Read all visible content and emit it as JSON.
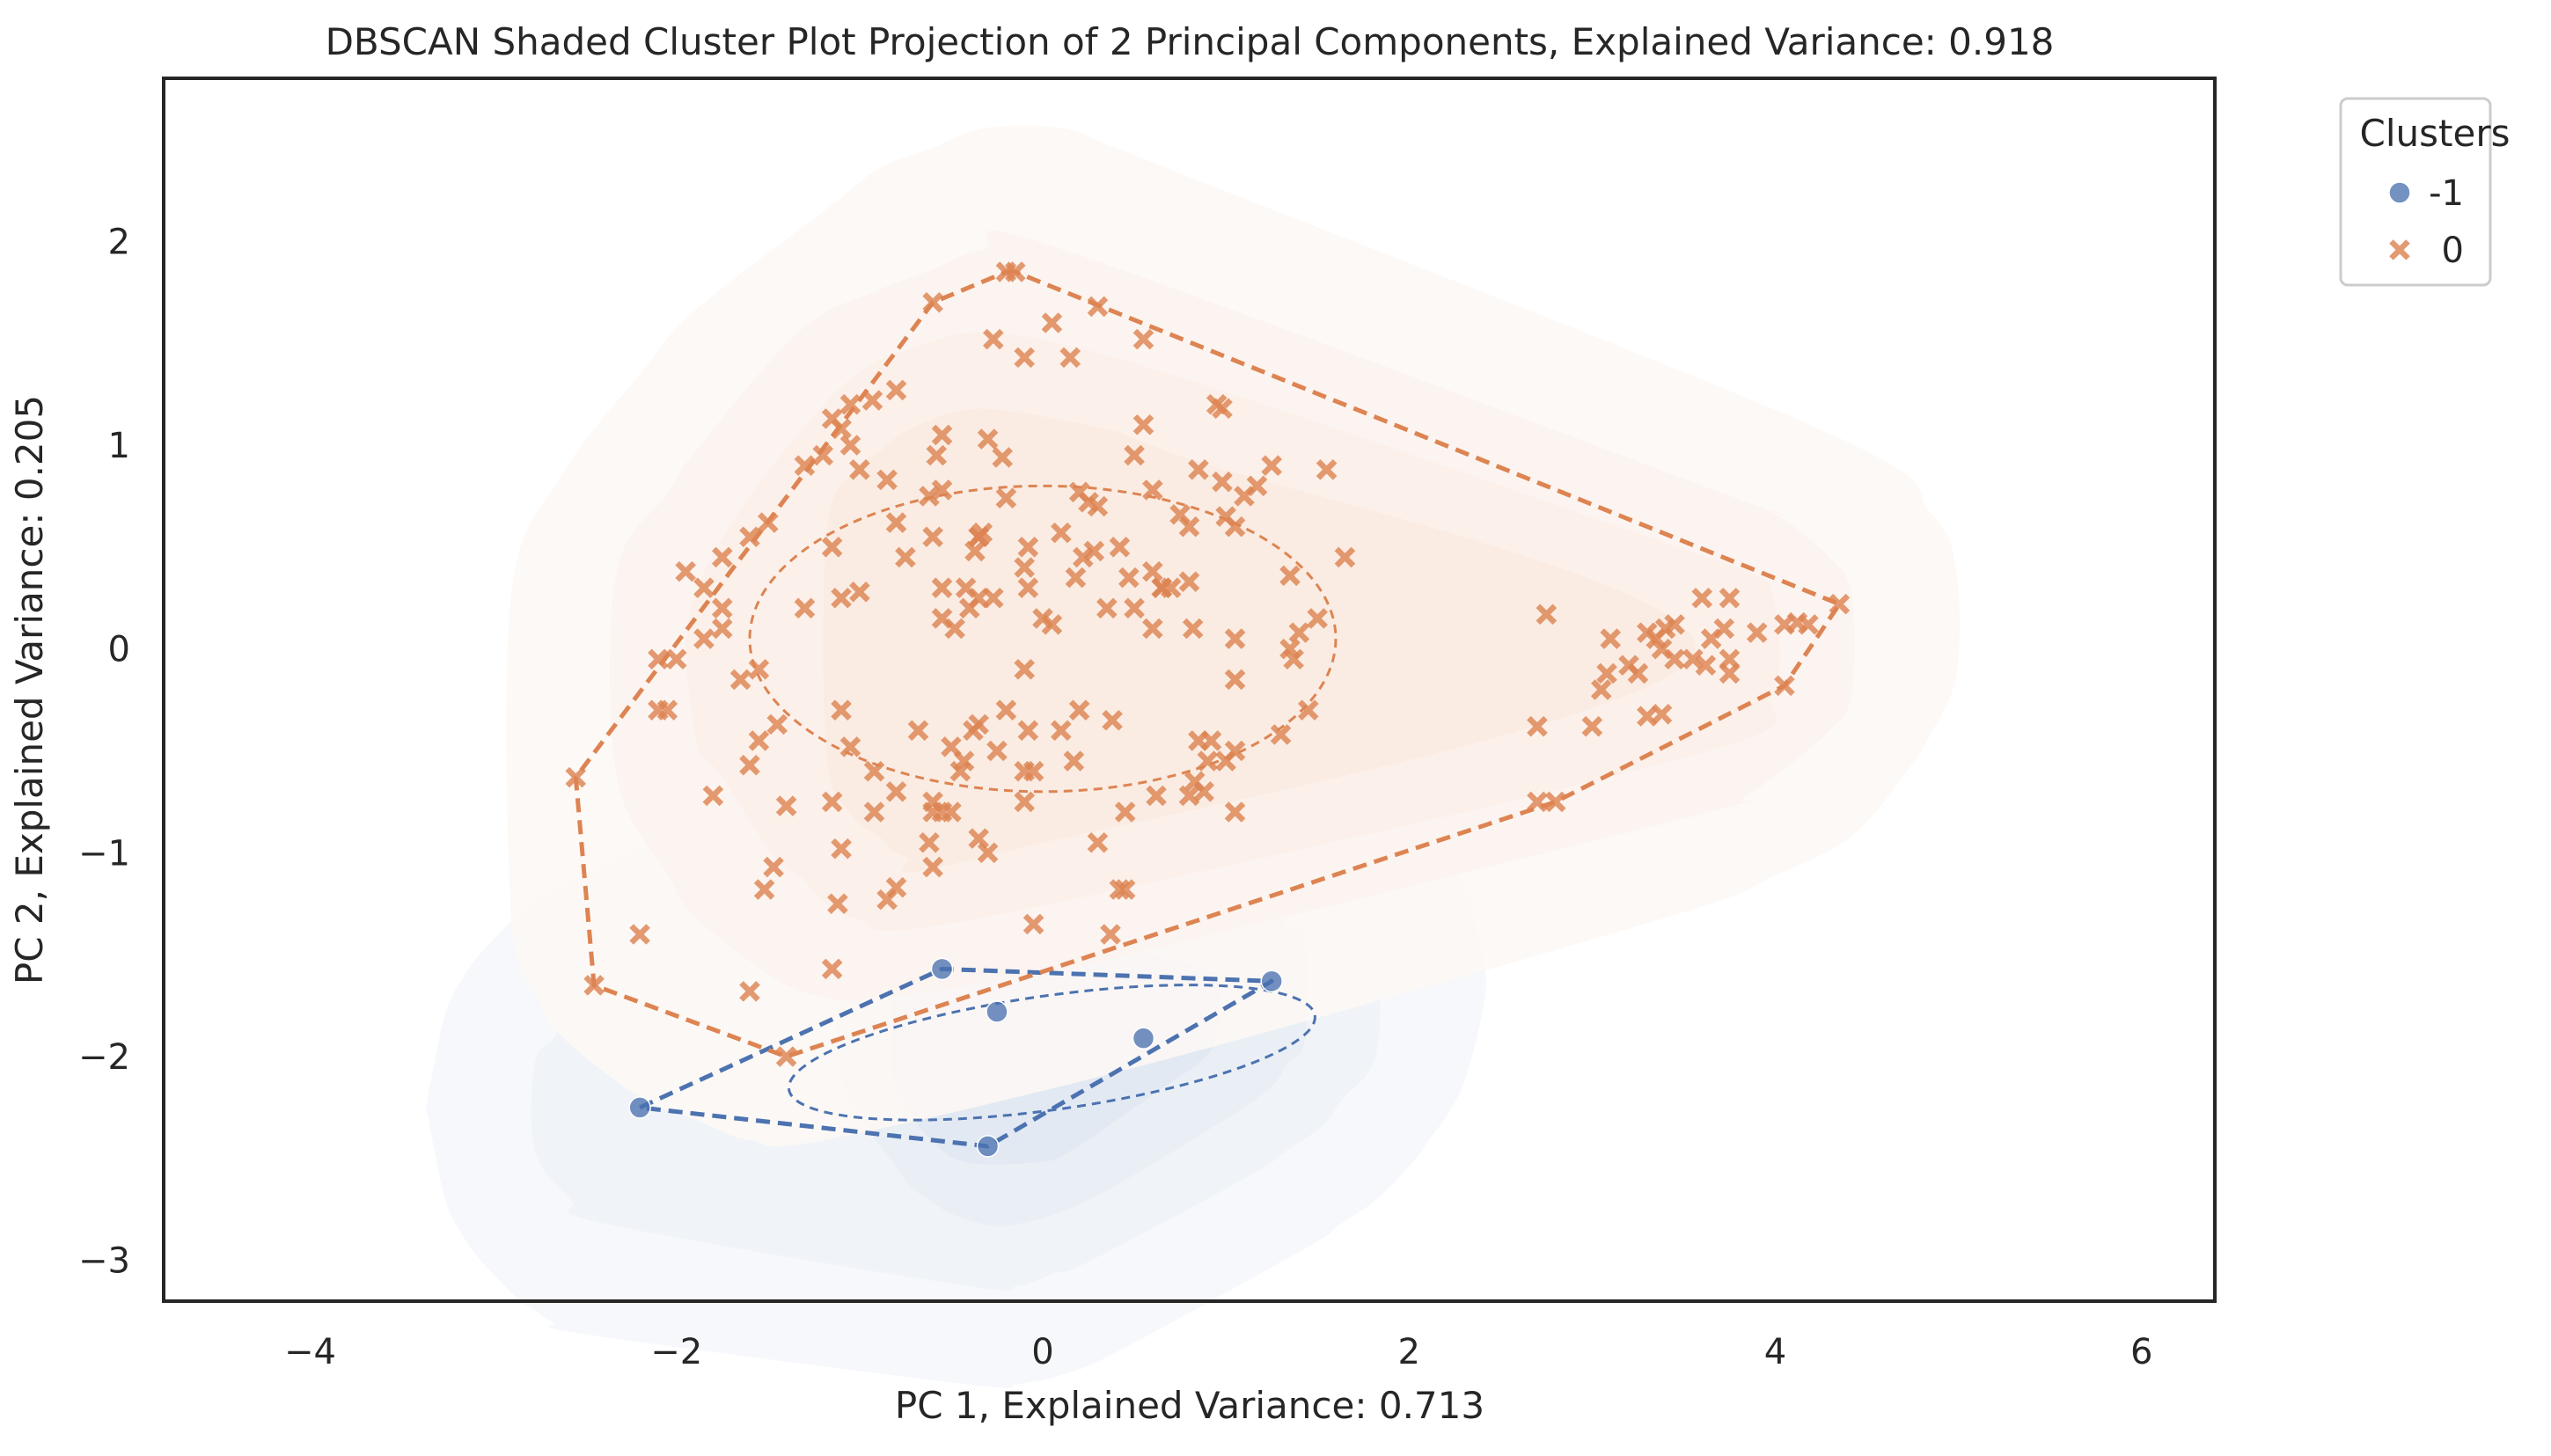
{
  "chart_data": {
    "type": "scatter",
    "title": "DBSCAN Shaded Cluster Plot Projection of 2 Principal Components, Explained Variance: 0.918",
    "xlabel": "PC 1, Explained Variance: 0.713",
    "ylabel": "PC 2, Explained Variance: 0.205",
    "xlim": [
      -4.8,
      6.4
    ],
    "ylim": [
      -3.2,
      2.8
    ],
    "xticks": [
      -4,
      -2,
      0,
      2,
      4,
      6
    ],
    "xtick_labels": [
      "−4",
      "−2",
      "0",
      "2",
      "4",
      "6"
    ],
    "yticks": [
      -3,
      -2,
      -1,
      0,
      1,
      2
    ],
    "ytick_labels": [
      "−3",
      "−2",
      "−1",
      "0",
      "1",
      "2"
    ],
    "grid": false,
    "legend": {
      "title": "Clusters",
      "placement": "outside-top-right",
      "entries": [
        {
          "label": "-1",
          "marker": "circle",
          "color": "#4c72b0"
        },
        {
          "label": "0",
          "marker": "x",
          "color": "#dd8452"
        }
      ]
    },
    "series": [
      {
        "name": "-1",
        "marker": "circle",
        "color": "#4c72b0",
        "points": [
          [
            -0.55,
            -1.57
          ],
          [
            -0.25,
            -1.78
          ],
          [
            0.55,
            -1.91
          ],
          [
            1.25,
            -1.63
          ],
          [
            -2.2,
            -2.25
          ],
          [
            -0.3,
            -2.44
          ]
        ],
        "hull": [
          [
            -2.2,
            -2.25
          ],
          [
            -0.55,
            -1.57
          ],
          [
            1.25,
            -1.63
          ],
          [
            -0.3,
            -2.44
          ]
        ],
        "ellipse": {
          "cx": 0.05,
          "cy": -1.98,
          "rx": 1.45,
          "ry": 0.28,
          "angle_deg": 8
        }
      },
      {
        "name": "0",
        "marker": "x",
        "color": "#dd8452",
        "points": [
          [
            -0.2,
            1.85
          ],
          [
            -0.15,
            1.85
          ],
          [
            -0.6,
            1.7
          ],
          [
            0.3,
            1.68
          ],
          [
            0.05,
            1.6
          ],
          [
            -0.27,
            1.52
          ],
          [
            0.55,
            1.52
          ],
          [
            -0.1,
            1.43
          ],
          [
            0.15,
            1.43
          ],
          [
            -0.8,
            1.27
          ],
          [
            -0.93,
            1.22
          ],
          [
            -1.05,
            1.2
          ],
          [
            0.95,
            1.2
          ],
          [
            0.98,
            1.18
          ],
          [
            -1.15,
            1.13
          ],
          [
            -1.1,
            1.08
          ],
          [
            0.55,
            1.1
          ],
          [
            -0.55,
            1.05
          ],
          [
            -0.3,
            1.03
          ],
          [
            -1.05,
            1.0
          ],
          [
            -1.2,
            0.95
          ],
          [
            0.5,
            0.95
          ],
          [
            -0.58,
            0.95
          ],
          [
            -0.22,
            0.94
          ],
          [
            -1.3,
            0.9
          ],
          [
            -1.0,
            0.88
          ],
          [
            0.85,
            0.88
          ],
          [
            1.25,
            0.9
          ],
          [
            1.55,
            0.88
          ],
          [
            0.98,
            0.82
          ],
          [
            1.17,
            0.8
          ],
          [
            -0.85,
            0.83
          ],
          [
            -0.62,
            0.75
          ],
          [
            -0.55,
            0.78
          ],
          [
            -0.2,
            0.74
          ],
          [
            0.2,
            0.77
          ],
          [
            0.25,
            0.72
          ],
          [
            0.6,
            0.78
          ],
          [
            1.1,
            0.75
          ],
          [
            1.0,
            0.65
          ],
          [
            -0.8,
            0.62
          ],
          [
            -1.5,
            0.62
          ],
          [
            0.3,
            0.7
          ],
          [
            -1.6,
            0.55
          ],
          [
            -0.6,
            0.55
          ],
          [
            -0.33,
            0.57
          ],
          [
            0.1,
            0.57
          ],
          [
            1.05,
            0.6
          ],
          [
            -0.35,
            0.55
          ],
          [
            -0.35,
            0.55
          ],
          [
            0.75,
            0.66
          ],
          [
            -1.15,
            0.5
          ],
          [
            0.8,
            0.6
          ],
          [
            -1.75,
            0.45
          ],
          [
            1.65,
            0.45
          ],
          [
            -0.08,
            0.5
          ],
          [
            0.42,
            0.5
          ],
          [
            -0.37,
            0.48
          ],
          [
            0.28,
            0.48
          ],
          [
            0.22,
            0.45
          ],
          [
            -0.75,
            0.45
          ],
          [
            0.6,
            0.38
          ],
          [
            -1.95,
            0.38
          ],
          [
            -1.85,
            0.3
          ],
          [
            0.47,
            0.35
          ],
          [
            -0.1,
            0.4
          ],
          [
            -0.42,
            0.3
          ],
          [
            -1.0,
            0.28
          ],
          [
            1.35,
            0.36
          ],
          [
            0.65,
            0.3
          ],
          [
            0.65,
            0.3
          ],
          [
            0.18,
            0.35
          ],
          [
            -0.55,
            0.3
          ],
          [
            0.8,
            0.33
          ],
          [
            -0.08,
            0.3
          ],
          [
            0.7,
            0.3
          ],
          [
            -1.1,
            0.25
          ],
          [
            -1.3,
            0.2
          ],
          [
            -0.27,
            0.25
          ],
          [
            -0.35,
            0.25
          ],
          [
            -0.4,
            0.2
          ],
          [
            0.35,
            0.2
          ],
          [
            0.5,
            0.2
          ],
          [
            -1.75,
            0.2
          ],
          [
            1.5,
            0.15
          ],
          [
            -0.55,
            0.15
          ],
          [
            -0.48,
            0.1
          ],
          [
            0.0,
            0.15
          ],
          [
            0.05,
            0.12
          ],
          [
            -1.75,
            0.1
          ],
          [
            -1.85,
            0.05
          ],
          [
            0.6,
            0.1
          ],
          [
            0.82,
            0.1
          ],
          [
            1.05,
            0.05
          ],
          [
            1.4,
            0.08
          ],
          [
            1.35,
            0.0
          ],
          [
            1.37,
            -0.05
          ],
          [
            -2.1,
            -0.05
          ],
          [
            -2.0,
            -0.05
          ],
          [
            -0.1,
            -0.1
          ],
          [
            -1.55,
            -0.1
          ],
          [
            1.05,
            -0.15
          ],
          [
            -1.65,
            -0.15
          ],
          [
            -2.05,
            -0.3
          ],
          [
            -2.1,
            -0.3
          ],
          [
            -1.1,
            -0.3
          ],
          [
            -0.2,
            -0.3
          ],
          [
            0.2,
            -0.3
          ],
          [
            -0.35,
            -0.37
          ],
          [
            0.38,
            -0.35
          ],
          [
            -1.45,
            -0.37
          ],
          [
            1.45,
            -0.3
          ],
          [
            -0.68,
            -0.4
          ],
          [
            -0.38,
            -0.4
          ],
          [
            -1.55,
            -0.45
          ],
          [
            1.3,
            -0.42
          ],
          [
            -0.08,
            -0.4
          ],
          [
            0.1,
            -0.4
          ],
          [
            0.92,
            -0.45
          ],
          [
            0.85,
            -0.45
          ],
          [
            0.9,
            -0.55
          ],
          [
            -1.05,
            -0.48
          ],
          [
            -0.5,
            -0.48
          ],
          [
            -0.43,
            -0.55
          ],
          [
            -0.25,
            -0.5
          ],
          [
            -1.6,
            -0.57
          ],
          [
            0.17,
            -0.55
          ],
          [
            -0.1,
            -0.6
          ],
          [
            1.05,
            -0.5
          ],
          [
            -0.92,
            -0.6
          ],
          [
            -0.05,
            -0.6
          ],
          [
            1.0,
            -0.55
          ],
          [
            -0.45,
            -0.6
          ],
          [
            -1.8,
            -0.72
          ],
          [
            -0.8,
            -0.7
          ],
          [
            -0.6,
            -0.75
          ],
          [
            0.62,
            -0.72
          ],
          [
            0.8,
            -0.72
          ],
          [
            0.83,
            -0.65
          ],
          [
            0.88,
            -0.7
          ],
          [
            -0.1,
            -0.75
          ],
          [
            -1.4,
            -0.77
          ],
          [
            -1.15,
            -0.75
          ],
          [
            -0.5,
            -0.8
          ],
          [
            -0.6,
            -0.8
          ],
          [
            0.45,
            -0.8
          ],
          [
            -0.55,
            -0.8
          ],
          [
            1.05,
            -0.8
          ],
          [
            -0.92,
            -0.8
          ],
          [
            -0.62,
            -0.95
          ],
          [
            -0.35,
            -0.93
          ],
          [
            0.3,
            -0.95
          ],
          [
            -1.1,
            -0.98
          ],
          [
            -0.3,
            -1.0
          ],
          [
            -0.6,
            -1.07
          ],
          [
            -1.47,
            -1.07
          ],
          [
            -1.52,
            -1.18
          ],
          [
            -0.8,
            -1.17
          ],
          [
            0.42,
            -1.18
          ],
          [
            0.45,
            -1.18
          ],
          [
            -1.12,
            -1.25
          ],
          [
            -0.85,
            -1.23
          ],
          [
            -0.05,
            -1.35
          ],
          [
            0.37,
            -1.4
          ],
          [
            -2.2,
            -1.4
          ],
          [
            -1.6,
            -1.68
          ],
          [
            -1.15,
            -1.57
          ],
          [
            -2.55,
            -0.63
          ],
          [
            -2.45,
            -1.65
          ],
          [
            -1.4,
            -2.0
          ],
          [
            2.75,
            0.17
          ],
          [
            3.1,
            0.05
          ],
          [
            3.3,
            0.08
          ],
          [
            3.4,
            0.1
          ],
          [
            3.45,
            0.12
          ],
          [
            3.35,
            0.05
          ],
          [
            3.6,
            0.25
          ],
          [
            3.75,
            0.25
          ],
          [
            3.2,
            -0.08
          ],
          [
            3.25,
            -0.12
          ],
          [
            3.38,
            0.0
          ],
          [
            3.45,
            -0.05
          ],
          [
            3.55,
            -0.05
          ],
          [
            3.65,
            0.05
          ],
          [
            3.72,
            0.1
          ],
          [
            3.75,
            -0.05
          ],
          [
            3.62,
            -0.08
          ],
          [
            3.9,
            0.08
          ],
          [
            4.05,
            0.12
          ],
          [
            4.12,
            0.13
          ],
          [
            4.18,
            0.12
          ],
          [
            4.35,
            0.22
          ],
          [
            3.05,
            -0.2
          ],
          [
            3.08,
            -0.12
          ],
          [
            3.3,
            -0.33
          ],
          [
            3.38,
            -0.32
          ],
          [
            3.75,
            -0.12
          ],
          [
            4.05,
            -0.18
          ],
          [
            2.7,
            -0.38
          ],
          [
            3.0,
            -0.38
          ],
          [
            2.7,
            -0.75
          ],
          [
            2.8,
            -0.75
          ]
        ],
        "hull": [
          [
            -0.2,
            1.85
          ],
          [
            -0.15,
            1.85
          ],
          [
            4.35,
            0.22
          ],
          [
            4.05,
            -0.18
          ],
          [
            2.8,
            -0.75
          ],
          [
            -1.4,
            -2.0
          ],
          [
            -2.45,
            -1.65
          ],
          [
            -2.55,
            -0.63
          ],
          [
            -0.6,
            1.7
          ]
        ],
        "ellipse": {
          "cx": 0.0,
          "cy": 0.05,
          "rx": 1.6,
          "ry": 0.75,
          "angle_deg": 0
        }
      }
    ]
  }
}
